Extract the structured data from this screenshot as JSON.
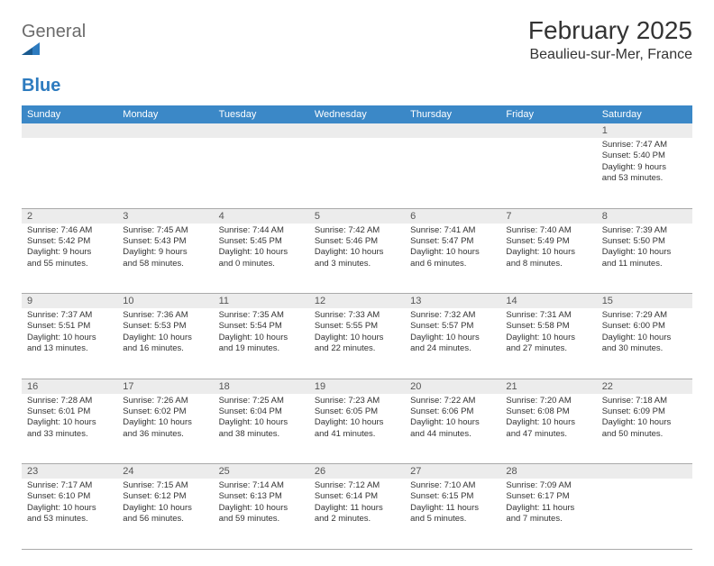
{
  "logo": {
    "text_a": "General",
    "text_b": "Blue"
  },
  "title": "February 2025",
  "location": "Beaulieu-sur-Mer, France",
  "colors": {
    "header_bg": "#3b88c7",
    "header_text": "#ffffff",
    "daynum_bg": "#ececec",
    "border": "#aaaaaa",
    "logo_gray": "#6b6b6b",
    "logo_blue": "#2d7bbf"
  },
  "day_headers": [
    "Sunday",
    "Monday",
    "Tuesday",
    "Wednesday",
    "Thursday",
    "Friday",
    "Saturday"
  ],
  "weeks": [
    {
      "nums": [
        "",
        "",
        "",
        "",
        "",
        "",
        "1"
      ],
      "cells": [
        null,
        null,
        null,
        null,
        null,
        null,
        {
          "sunrise": "Sunrise: 7:47 AM",
          "sunset": "Sunset: 5:40 PM",
          "dl1": "Daylight: 9 hours",
          "dl2": "and 53 minutes."
        }
      ]
    },
    {
      "nums": [
        "2",
        "3",
        "4",
        "5",
        "6",
        "7",
        "8"
      ],
      "cells": [
        {
          "sunrise": "Sunrise: 7:46 AM",
          "sunset": "Sunset: 5:42 PM",
          "dl1": "Daylight: 9 hours",
          "dl2": "and 55 minutes."
        },
        {
          "sunrise": "Sunrise: 7:45 AM",
          "sunset": "Sunset: 5:43 PM",
          "dl1": "Daylight: 9 hours",
          "dl2": "and 58 minutes."
        },
        {
          "sunrise": "Sunrise: 7:44 AM",
          "sunset": "Sunset: 5:45 PM",
          "dl1": "Daylight: 10 hours",
          "dl2": "and 0 minutes."
        },
        {
          "sunrise": "Sunrise: 7:42 AM",
          "sunset": "Sunset: 5:46 PM",
          "dl1": "Daylight: 10 hours",
          "dl2": "and 3 minutes."
        },
        {
          "sunrise": "Sunrise: 7:41 AM",
          "sunset": "Sunset: 5:47 PM",
          "dl1": "Daylight: 10 hours",
          "dl2": "and 6 minutes."
        },
        {
          "sunrise": "Sunrise: 7:40 AM",
          "sunset": "Sunset: 5:49 PM",
          "dl1": "Daylight: 10 hours",
          "dl2": "and 8 minutes."
        },
        {
          "sunrise": "Sunrise: 7:39 AM",
          "sunset": "Sunset: 5:50 PM",
          "dl1": "Daylight: 10 hours",
          "dl2": "and 11 minutes."
        }
      ]
    },
    {
      "nums": [
        "9",
        "10",
        "11",
        "12",
        "13",
        "14",
        "15"
      ],
      "cells": [
        {
          "sunrise": "Sunrise: 7:37 AM",
          "sunset": "Sunset: 5:51 PM",
          "dl1": "Daylight: 10 hours",
          "dl2": "and 13 minutes."
        },
        {
          "sunrise": "Sunrise: 7:36 AM",
          "sunset": "Sunset: 5:53 PM",
          "dl1": "Daylight: 10 hours",
          "dl2": "and 16 minutes."
        },
        {
          "sunrise": "Sunrise: 7:35 AM",
          "sunset": "Sunset: 5:54 PM",
          "dl1": "Daylight: 10 hours",
          "dl2": "and 19 minutes."
        },
        {
          "sunrise": "Sunrise: 7:33 AM",
          "sunset": "Sunset: 5:55 PM",
          "dl1": "Daylight: 10 hours",
          "dl2": "and 22 minutes."
        },
        {
          "sunrise": "Sunrise: 7:32 AM",
          "sunset": "Sunset: 5:57 PM",
          "dl1": "Daylight: 10 hours",
          "dl2": "and 24 minutes."
        },
        {
          "sunrise": "Sunrise: 7:31 AM",
          "sunset": "Sunset: 5:58 PM",
          "dl1": "Daylight: 10 hours",
          "dl2": "and 27 minutes."
        },
        {
          "sunrise": "Sunrise: 7:29 AM",
          "sunset": "Sunset: 6:00 PM",
          "dl1": "Daylight: 10 hours",
          "dl2": "and 30 minutes."
        }
      ]
    },
    {
      "nums": [
        "16",
        "17",
        "18",
        "19",
        "20",
        "21",
        "22"
      ],
      "cells": [
        {
          "sunrise": "Sunrise: 7:28 AM",
          "sunset": "Sunset: 6:01 PM",
          "dl1": "Daylight: 10 hours",
          "dl2": "and 33 minutes."
        },
        {
          "sunrise": "Sunrise: 7:26 AM",
          "sunset": "Sunset: 6:02 PM",
          "dl1": "Daylight: 10 hours",
          "dl2": "and 36 minutes."
        },
        {
          "sunrise": "Sunrise: 7:25 AM",
          "sunset": "Sunset: 6:04 PM",
          "dl1": "Daylight: 10 hours",
          "dl2": "and 38 minutes."
        },
        {
          "sunrise": "Sunrise: 7:23 AM",
          "sunset": "Sunset: 6:05 PM",
          "dl1": "Daylight: 10 hours",
          "dl2": "and 41 minutes."
        },
        {
          "sunrise": "Sunrise: 7:22 AM",
          "sunset": "Sunset: 6:06 PM",
          "dl1": "Daylight: 10 hours",
          "dl2": "and 44 minutes."
        },
        {
          "sunrise": "Sunrise: 7:20 AM",
          "sunset": "Sunset: 6:08 PM",
          "dl1": "Daylight: 10 hours",
          "dl2": "and 47 minutes."
        },
        {
          "sunrise": "Sunrise: 7:18 AM",
          "sunset": "Sunset: 6:09 PM",
          "dl1": "Daylight: 10 hours",
          "dl2": "and 50 minutes."
        }
      ]
    },
    {
      "nums": [
        "23",
        "24",
        "25",
        "26",
        "27",
        "28",
        ""
      ],
      "cells": [
        {
          "sunrise": "Sunrise: 7:17 AM",
          "sunset": "Sunset: 6:10 PM",
          "dl1": "Daylight: 10 hours",
          "dl2": "and 53 minutes."
        },
        {
          "sunrise": "Sunrise: 7:15 AM",
          "sunset": "Sunset: 6:12 PM",
          "dl1": "Daylight: 10 hours",
          "dl2": "and 56 minutes."
        },
        {
          "sunrise": "Sunrise: 7:14 AM",
          "sunset": "Sunset: 6:13 PM",
          "dl1": "Daylight: 10 hours",
          "dl2": "and 59 minutes."
        },
        {
          "sunrise": "Sunrise: 7:12 AM",
          "sunset": "Sunset: 6:14 PM",
          "dl1": "Daylight: 11 hours",
          "dl2": "and 2 minutes."
        },
        {
          "sunrise": "Sunrise: 7:10 AM",
          "sunset": "Sunset: 6:15 PM",
          "dl1": "Daylight: 11 hours",
          "dl2": "and 5 minutes."
        },
        {
          "sunrise": "Sunrise: 7:09 AM",
          "sunset": "Sunset: 6:17 PM",
          "dl1": "Daylight: 11 hours",
          "dl2": "and 7 minutes."
        },
        null
      ]
    }
  ]
}
